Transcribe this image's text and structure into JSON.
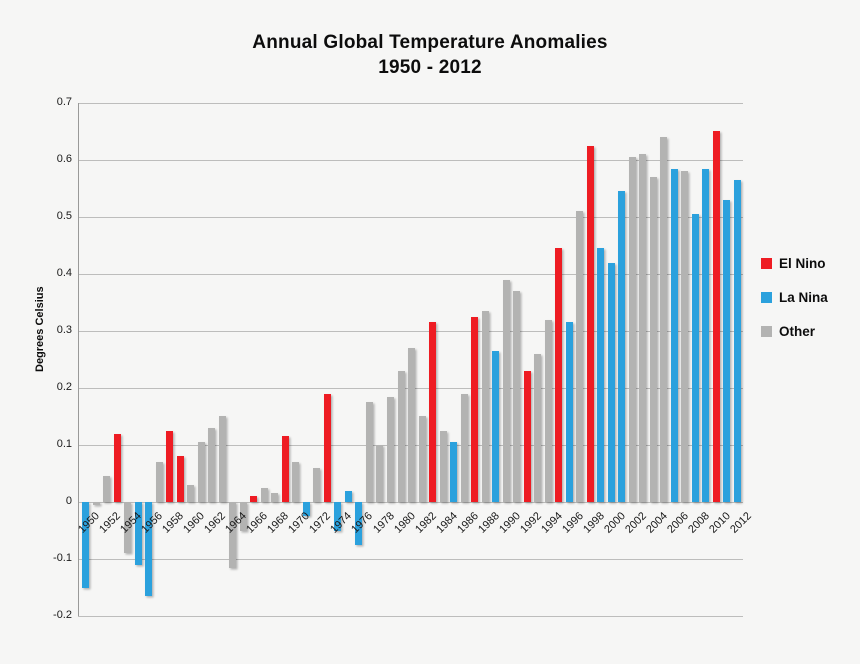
{
  "page": {
    "background": "#f6f6f5"
  },
  "chart_data": {
    "type": "bar",
    "title": "Annual Global Temperature Anomalies",
    "subtitle": "1950 - 2012",
    "ylabel": "Degrees Celsius",
    "ylim": [
      -0.2,
      0.7
    ],
    "ytick_labels": [
      "0.7",
      "0.6",
      "0.5",
      "0.4",
      "0.3",
      "0.2",
      "0.1",
      "0",
      "-0.1",
      "-0.2"
    ],
    "xtick_years": [
      1950,
      1952,
      1954,
      1956,
      1958,
      1960,
      1962,
      1964,
      1966,
      1968,
      1970,
      1972,
      1974,
      1976,
      1978,
      1980,
      1982,
      1984,
      1986,
      1988,
      1990,
      1992,
      1994,
      1996,
      1998,
      2000,
      2002,
      2004,
      2006,
      2008,
      2010,
      2012
    ],
    "grid": true,
    "legend_position": "right",
    "legend": [
      {
        "key": "el_nino",
        "label": "El Nino",
        "color": "#ee1c23"
      },
      {
        "key": "la_nina",
        "label": "La Nina",
        "color": "#2ba1dd"
      },
      {
        "key": "other",
        "label": "Other",
        "color": "#b3b3b2"
      }
    ],
    "points": [
      {
        "year": 1950,
        "value": -0.15,
        "group": "la_nina"
      },
      {
        "year": 1951,
        "value": -0.005,
        "group": "other"
      },
      {
        "year": 1952,
        "value": 0.045,
        "group": "other"
      },
      {
        "year": 1953,
        "value": 0.12,
        "group": "el_nino"
      },
      {
        "year": 1954,
        "value": -0.09,
        "group": "other"
      },
      {
        "year": 1955,
        "value": -0.11,
        "group": "la_nina"
      },
      {
        "year": 1956,
        "value": -0.165,
        "group": "la_nina"
      },
      {
        "year": 1957,
        "value": 0.07,
        "group": "other"
      },
      {
        "year": 1958,
        "value": 0.125,
        "group": "el_nino"
      },
      {
        "year": 1959,
        "value": 0.08,
        "group": "el_nino"
      },
      {
        "year": 1960,
        "value": 0.03,
        "group": "other"
      },
      {
        "year": 1961,
        "value": 0.105,
        "group": "other"
      },
      {
        "year": 1962,
        "value": 0.13,
        "group": "other"
      },
      {
        "year": 1963,
        "value": 0.15,
        "group": "other"
      },
      {
        "year": 1964,
        "value": -0.115,
        "group": "other"
      },
      {
        "year": 1965,
        "value": -0.05,
        "group": "other"
      },
      {
        "year": 1966,
        "value": 0.01,
        "group": "el_nino"
      },
      {
        "year": 1967,
        "value": 0.025,
        "group": "other"
      },
      {
        "year": 1968,
        "value": 0.015,
        "group": "other"
      },
      {
        "year": 1969,
        "value": 0.115,
        "group": "el_nino"
      },
      {
        "year": 1970,
        "value": 0.07,
        "group": "other"
      },
      {
        "year": 1971,
        "value": -0.025,
        "group": "la_nina"
      },
      {
        "year": 1972,
        "value": 0.06,
        "group": "other"
      },
      {
        "year": 1973,
        "value": 0.19,
        "group": "el_nino"
      },
      {
        "year": 1974,
        "value": -0.05,
        "group": "la_nina"
      },
      {
        "year": 1975,
        "value": 0.02,
        "group": "la_nina"
      },
      {
        "year": 1976,
        "value": -0.075,
        "group": "la_nina"
      },
      {
        "year": 1977,
        "value": 0.175,
        "group": "other"
      },
      {
        "year": 1978,
        "value": 0.1,
        "group": "other"
      },
      {
        "year": 1979,
        "value": 0.185,
        "group": "other"
      },
      {
        "year": 1980,
        "value": 0.23,
        "group": "other"
      },
      {
        "year": 1981,
        "value": 0.27,
        "group": "other"
      },
      {
        "year": 1982,
        "value": 0.15,
        "group": "other"
      },
      {
        "year": 1983,
        "value": 0.315,
        "group": "el_nino"
      },
      {
        "year": 1984,
        "value": 0.125,
        "group": "other"
      },
      {
        "year": 1985,
        "value": 0.105,
        "group": "la_nina"
      },
      {
        "year": 1986,
        "value": 0.19,
        "group": "other"
      },
      {
        "year": 1987,
        "value": 0.325,
        "group": "el_nino"
      },
      {
        "year": 1988,
        "value": 0.335,
        "group": "other"
      },
      {
        "year": 1989,
        "value": 0.265,
        "group": "la_nina"
      },
      {
        "year": 1990,
        "value": 0.39,
        "group": "other"
      },
      {
        "year": 1991,
        "value": 0.37,
        "group": "other"
      },
      {
        "year": 1992,
        "value": 0.23,
        "group": "el_nino"
      },
      {
        "year": 1993,
        "value": 0.26,
        "group": "other"
      },
      {
        "year": 1994,
        "value": 0.32,
        "group": "other"
      },
      {
        "year": 1995,
        "value": 0.445,
        "group": "el_nino"
      },
      {
        "year": 1996,
        "value": 0.315,
        "group": "la_nina"
      },
      {
        "year": 1997,
        "value": 0.51,
        "group": "other"
      },
      {
        "year": 1998,
        "value": 0.625,
        "group": "el_nino"
      },
      {
        "year": 1999,
        "value": 0.445,
        "group": "la_nina"
      },
      {
        "year": 2000,
        "value": 0.42,
        "group": "la_nina"
      },
      {
        "year": 2001,
        "value": 0.545,
        "group": "la_nina"
      },
      {
        "year": 2002,
        "value": 0.605,
        "group": "other"
      },
      {
        "year": 2003,
        "value": 0.61,
        "group": "other"
      },
      {
        "year": 2004,
        "value": 0.57,
        "group": "other"
      },
      {
        "year": 2005,
        "value": 0.64,
        "group": "other"
      },
      {
        "year": 2006,
        "value": 0.585,
        "group": "la_nina"
      },
      {
        "year": 2007,
        "value": 0.58,
        "group": "other"
      },
      {
        "year": 2008,
        "value": 0.505,
        "group": "la_nina"
      },
      {
        "year": 2009,
        "value": 0.585,
        "group": "la_nina"
      },
      {
        "year": 2010,
        "value": 0.65,
        "group": "el_nino"
      },
      {
        "year": 2011,
        "value": 0.53,
        "group": "la_nina"
      },
      {
        "year": 2012,
        "value": 0.565,
        "group": "la_nina"
      }
    ]
  }
}
